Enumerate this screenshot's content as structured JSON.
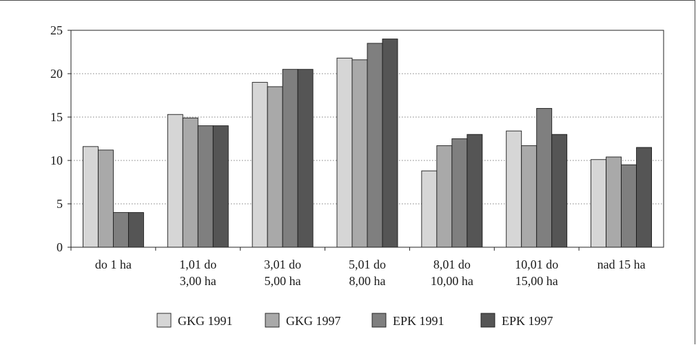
{
  "chart_data": {
    "type": "bar",
    "categories": [
      [
        "do 1 ha"
      ],
      [
        "1,01 do",
        "3,00 ha"
      ],
      [
        "3,01 do",
        "5,00 ha"
      ],
      [
        "5,01 do",
        "8,00 ha"
      ],
      [
        "8,01 do",
        "10,00 ha"
      ],
      [
        "10,01 do",
        "15,00 ha"
      ],
      [
        "nad 15 ha"
      ]
    ],
    "series": [
      {
        "name": "GKG 1991",
        "color": "#d6d6d6",
        "values": [
          11.6,
          15.3,
          19.0,
          21.8,
          8.8,
          13.4,
          10.1
        ]
      },
      {
        "name": "GKG 1997",
        "color": "#a9a9a9",
        "values": [
          11.2,
          14.9,
          18.5,
          21.6,
          11.7,
          11.7,
          10.4
        ]
      },
      {
        "name": "EPK 1991",
        "color": "#7f7f7f",
        "values": [
          4.0,
          14.0,
          20.5,
          23.5,
          12.5,
          16.0,
          9.5
        ]
      },
      {
        "name": "EPK 1997",
        "color": "#555555",
        "values": [
          4.0,
          14.0,
          20.5,
          24.0,
          13.0,
          13.0,
          11.5
        ]
      }
    ],
    "yticks": [
      0,
      5,
      10,
      15,
      20,
      25
    ],
    "ylim": [
      0,
      25
    ],
    "grid": true,
    "legend": "bottom"
  }
}
